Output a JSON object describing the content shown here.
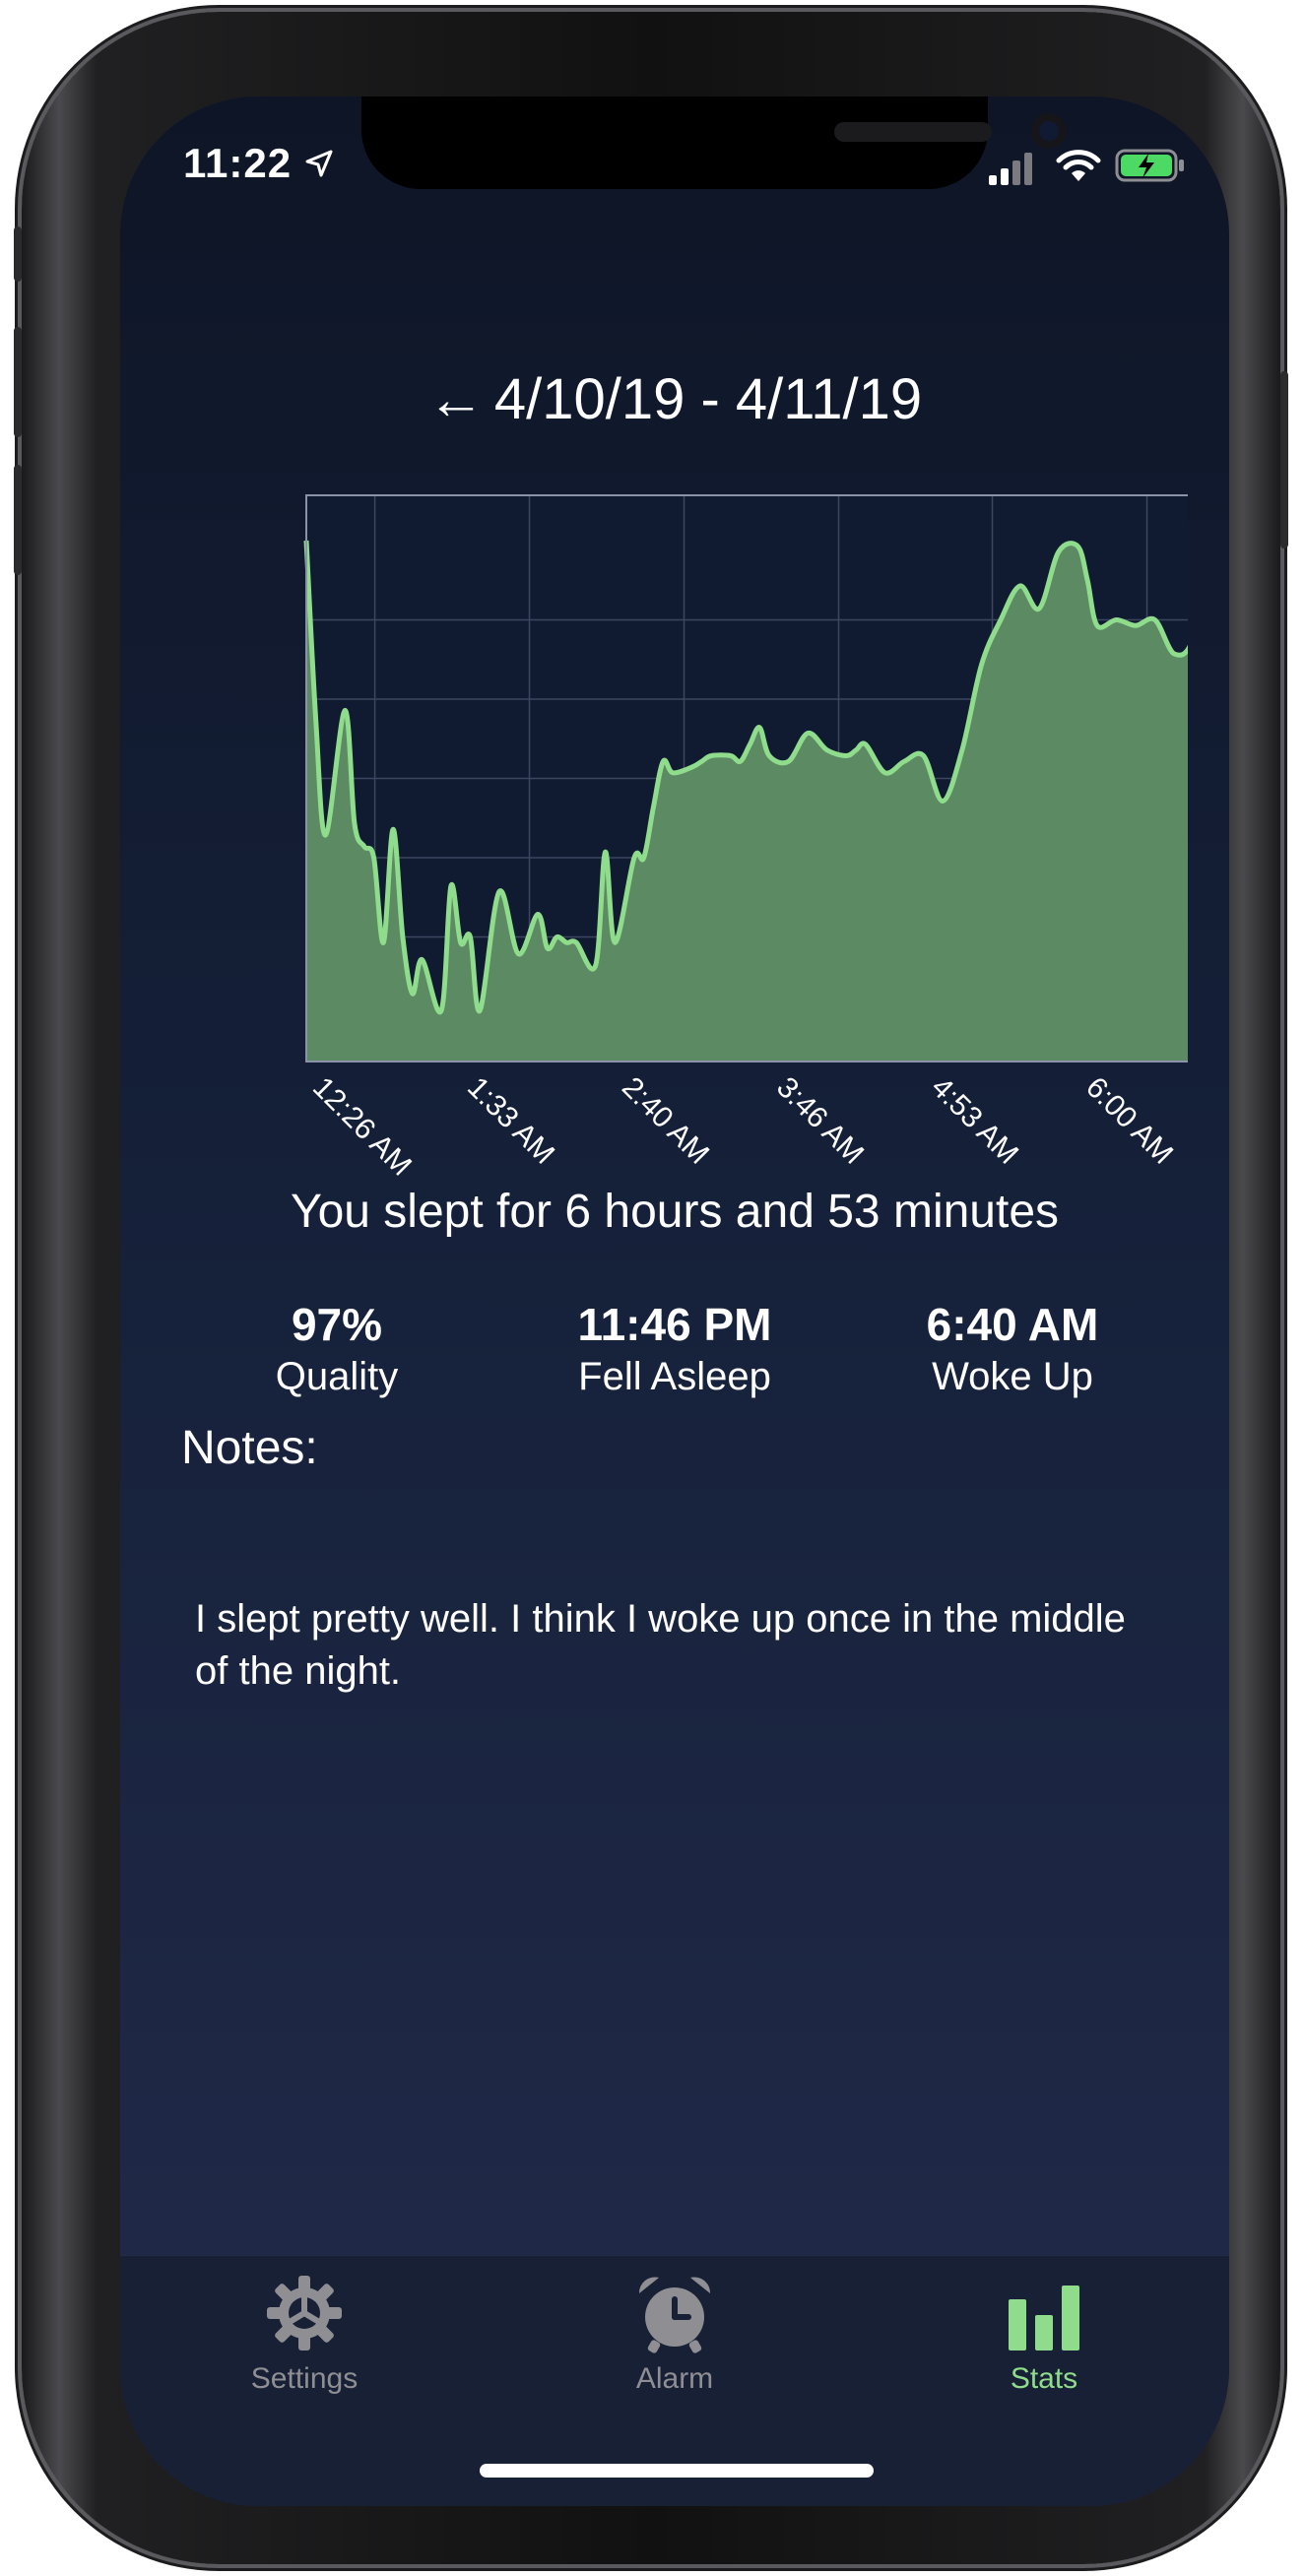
{
  "status_bar": {
    "time": "11:22"
  },
  "header": {
    "back": "←",
    "title": "4/10/19 - 4/11/19"
  },
  "chart_data": {
    "type": "area",
    "title": "",
    "x_tick_labels": [
      "12:26 AM",
      "1:33 AM",
      "2:40 AM",
      "3:46 AM",
      "4:53 AM",
      "6:00 AM"
    ],
    "x": [
      0.0,
      0.5,
      1,
      2,
      2.5,
      3,
      3.5,
      4,
      4.5,
      5,
      5.5,
      6,
      7,
      7.5,
      8,
      8.5,
      9,
      10,
      11,
      12,
      12.5,
      13,
      13.5,
      14,
      15,
      15.5,
      16,
      17,
      17.5,
      18,
      18.5,
      19,
      20,
      20.5,
      21,
      22,
      22.5,
      23,
      23.5,
      24,
      25,
      26,
      27,
      28,
      28.5,
      29,
      30,
      31,
      32,
      33,
      34,
      35,
      36,
      37,
      38,
      39,
      40,
      40.5,
      41,
      42,
      43,
      44,
      45,
      46,
      47,
      48
    ],
    "values": [
      0.92,
      0.6,
      0.4,
      0.62,
      0.42,
      0.38,
      0.36,
      0.21,
      0.41,
      0.22,
      0.12,
      0.18,
      0.09,
      0.31,
      0.21,
      0.22,
      0.09,
      0.3,
      0.19,
      0.26,
      0.2,
      0.22,
      0.21,
      0.21,
      0.17,
      0.37,
      0.21,
      0.36,
      0.36,
      0.45,
      0.53,
      0.51,
      0.52,
      0.53,
      0.54,
      0.54,
      0.53,
      0.56,
      0.59,
      0.54,
      0.53,
      0.58,
      0.55,
      0.54,
      0.55,
      0.56,
      0.51,
      0.53,
      0.54,
      0.46,
      0.55,
      0.7,
      0.78,
      0.84,
      0.8,
      0.9,
      0.91,
      0.85,
      0.77,
      0.78,
      0.77,
      0.78,
      0.72,
      0.75,
      0.93,
      0.78
    ],
    "grid": true,
    "line_color": "#8fdc8c",
    "fill_color": "#5c8a62"
  },
  "summary": "You slept for 6 hours and 53 minutes",
  "stats": [
    {
      "value": "97%",
      "label": "Quality"
    },
    {
      "value": "11:46 PM",
      "label": "Fell Asleep"
    },
    {
      "value": "6:40 AM",
      "label": "Woke Up"
    }
  ],
  "notes": {
    "label": "Notes:",
    "text": "I slept pretty well. I think I woke up once in the middle of the night."
  },
  "tabs": [
    {
      "label": "Settings",
      "icon": "gear-icon",
      "active": false
    },
    {
      "label": "Alarm",
      "icon": "alarm-clock-icon",
      "active": false
    },
    {
      "label": "Stats",
      "icon": "bar-chart-icon",
      "active": true
    }
  ],
  "colors": {
    "accent": "#8fdc8c",
    "inactive": "#8e8e93",
    "background": "#1b2440"
  }
}
